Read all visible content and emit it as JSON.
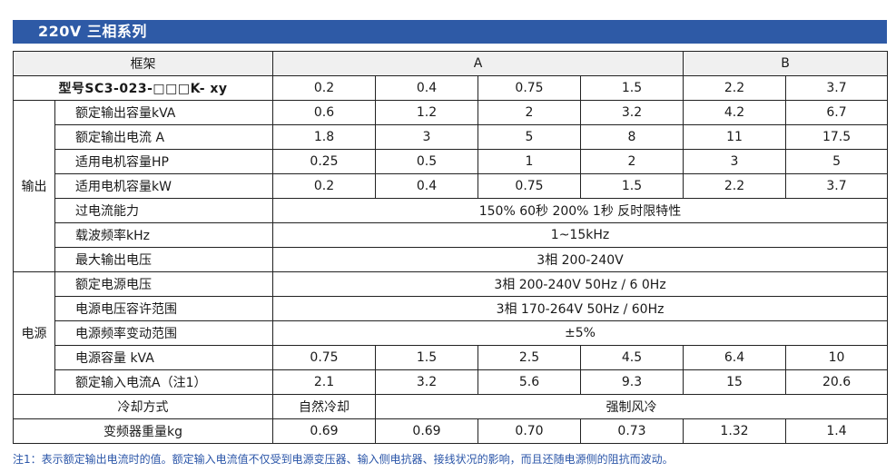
{
  "title": "220V 三相系列",
  "header": {
    "frame_label": "框架",
    "group_a": "A",
    "group_b": "B"
  },
  "model": {
    "label": "型号SC3-023-□□□K- xy",
    "values": [
      "0.2",
      "0.4",
      "0.75",
      "1.5",
      "2.2",
      "3.7"
    ]
  },
  "output": {
    "group_label": "输出",
    "rows": [
      {
        "label": "额定输出容量kVA",
        "values": [
          "0.6",
          "1.2",
          "2",
          "3.2",
          "4.2",
          "6.7"
        ]
      },
      {
        "label": "额定输出电流 A",
        "values": [
          "1.8",
          "3",
          "5",
          "8",
          "11",
          "17.5"
        ]
      },
      {
        "label": "适用电机容量HP",
        "values": [
          "0.25",
          "0.5",
          "1",
          "2",
          "3",
          "5"
        ]
      },
      {
        "label": "适用电机容量kW",
        "values": [
          "0.2",
          "0.4",
          "0.75",
          "1.5",
          "2.2",
          "3.7"
        ]
      }
    ],
    "overload": {
      "label": "过电流能力",
      "value": "150% 60秒  200% 1秒  反时限特性"
    },
    "carrier": {
      "label": "载波频率kHz",
      "value": "1~15kHz"
    },
    "max_voltage": {
      "label": "最大输出电压",
      "value": "3相 200-240V"
    }
  },
  "power": {
    "group_label": "电源",
    "rated_voltage": {
      "label": "额定电源电压",
      "value": "3相 200-240V   50Hz / 6 0Hz"
    },
    "voltage_range": {
      "label": "电源电压容许范围",
      "value": "3相 170-264V   50Hz / 60Hz"
    },
    "freq_range": {
      "label": "电源频率变动范围",
      "value": "±5%"
    },
    "capacity": {
      "label": "电源容量  kVA",
      "values": [
        "0.75",
        "1.5",
        "2.5",
        "4.5",
        "6.4",
        "10"
      ]
    },
    "input_current": {
      "label": "额定输入电流A（注1）",
      "values": [
        "2.1",
        "3.2",
        "5.6",
        "9.3",
        "15",
        "20.6"
      ]
    }
  },
  "cooling": {
    "label": "冷却方式",
    "natural": "自然冷却",
    "forced": "强制风冷"
  },
  "weight": {
    "label": "变频器重量kg",
    "values": [
      "0.69",
      "0.69",
      "0.70",
      "0.73",
      "1.32",
      "1.4"
    ]
  },
  "footnote": "注1：表示额定输出电流时的值。额定输入电流值不仅受到电源变压器、输入侧电抗器、接线状况的影响，而且还随电源侧的阻抗而波动。"
}
